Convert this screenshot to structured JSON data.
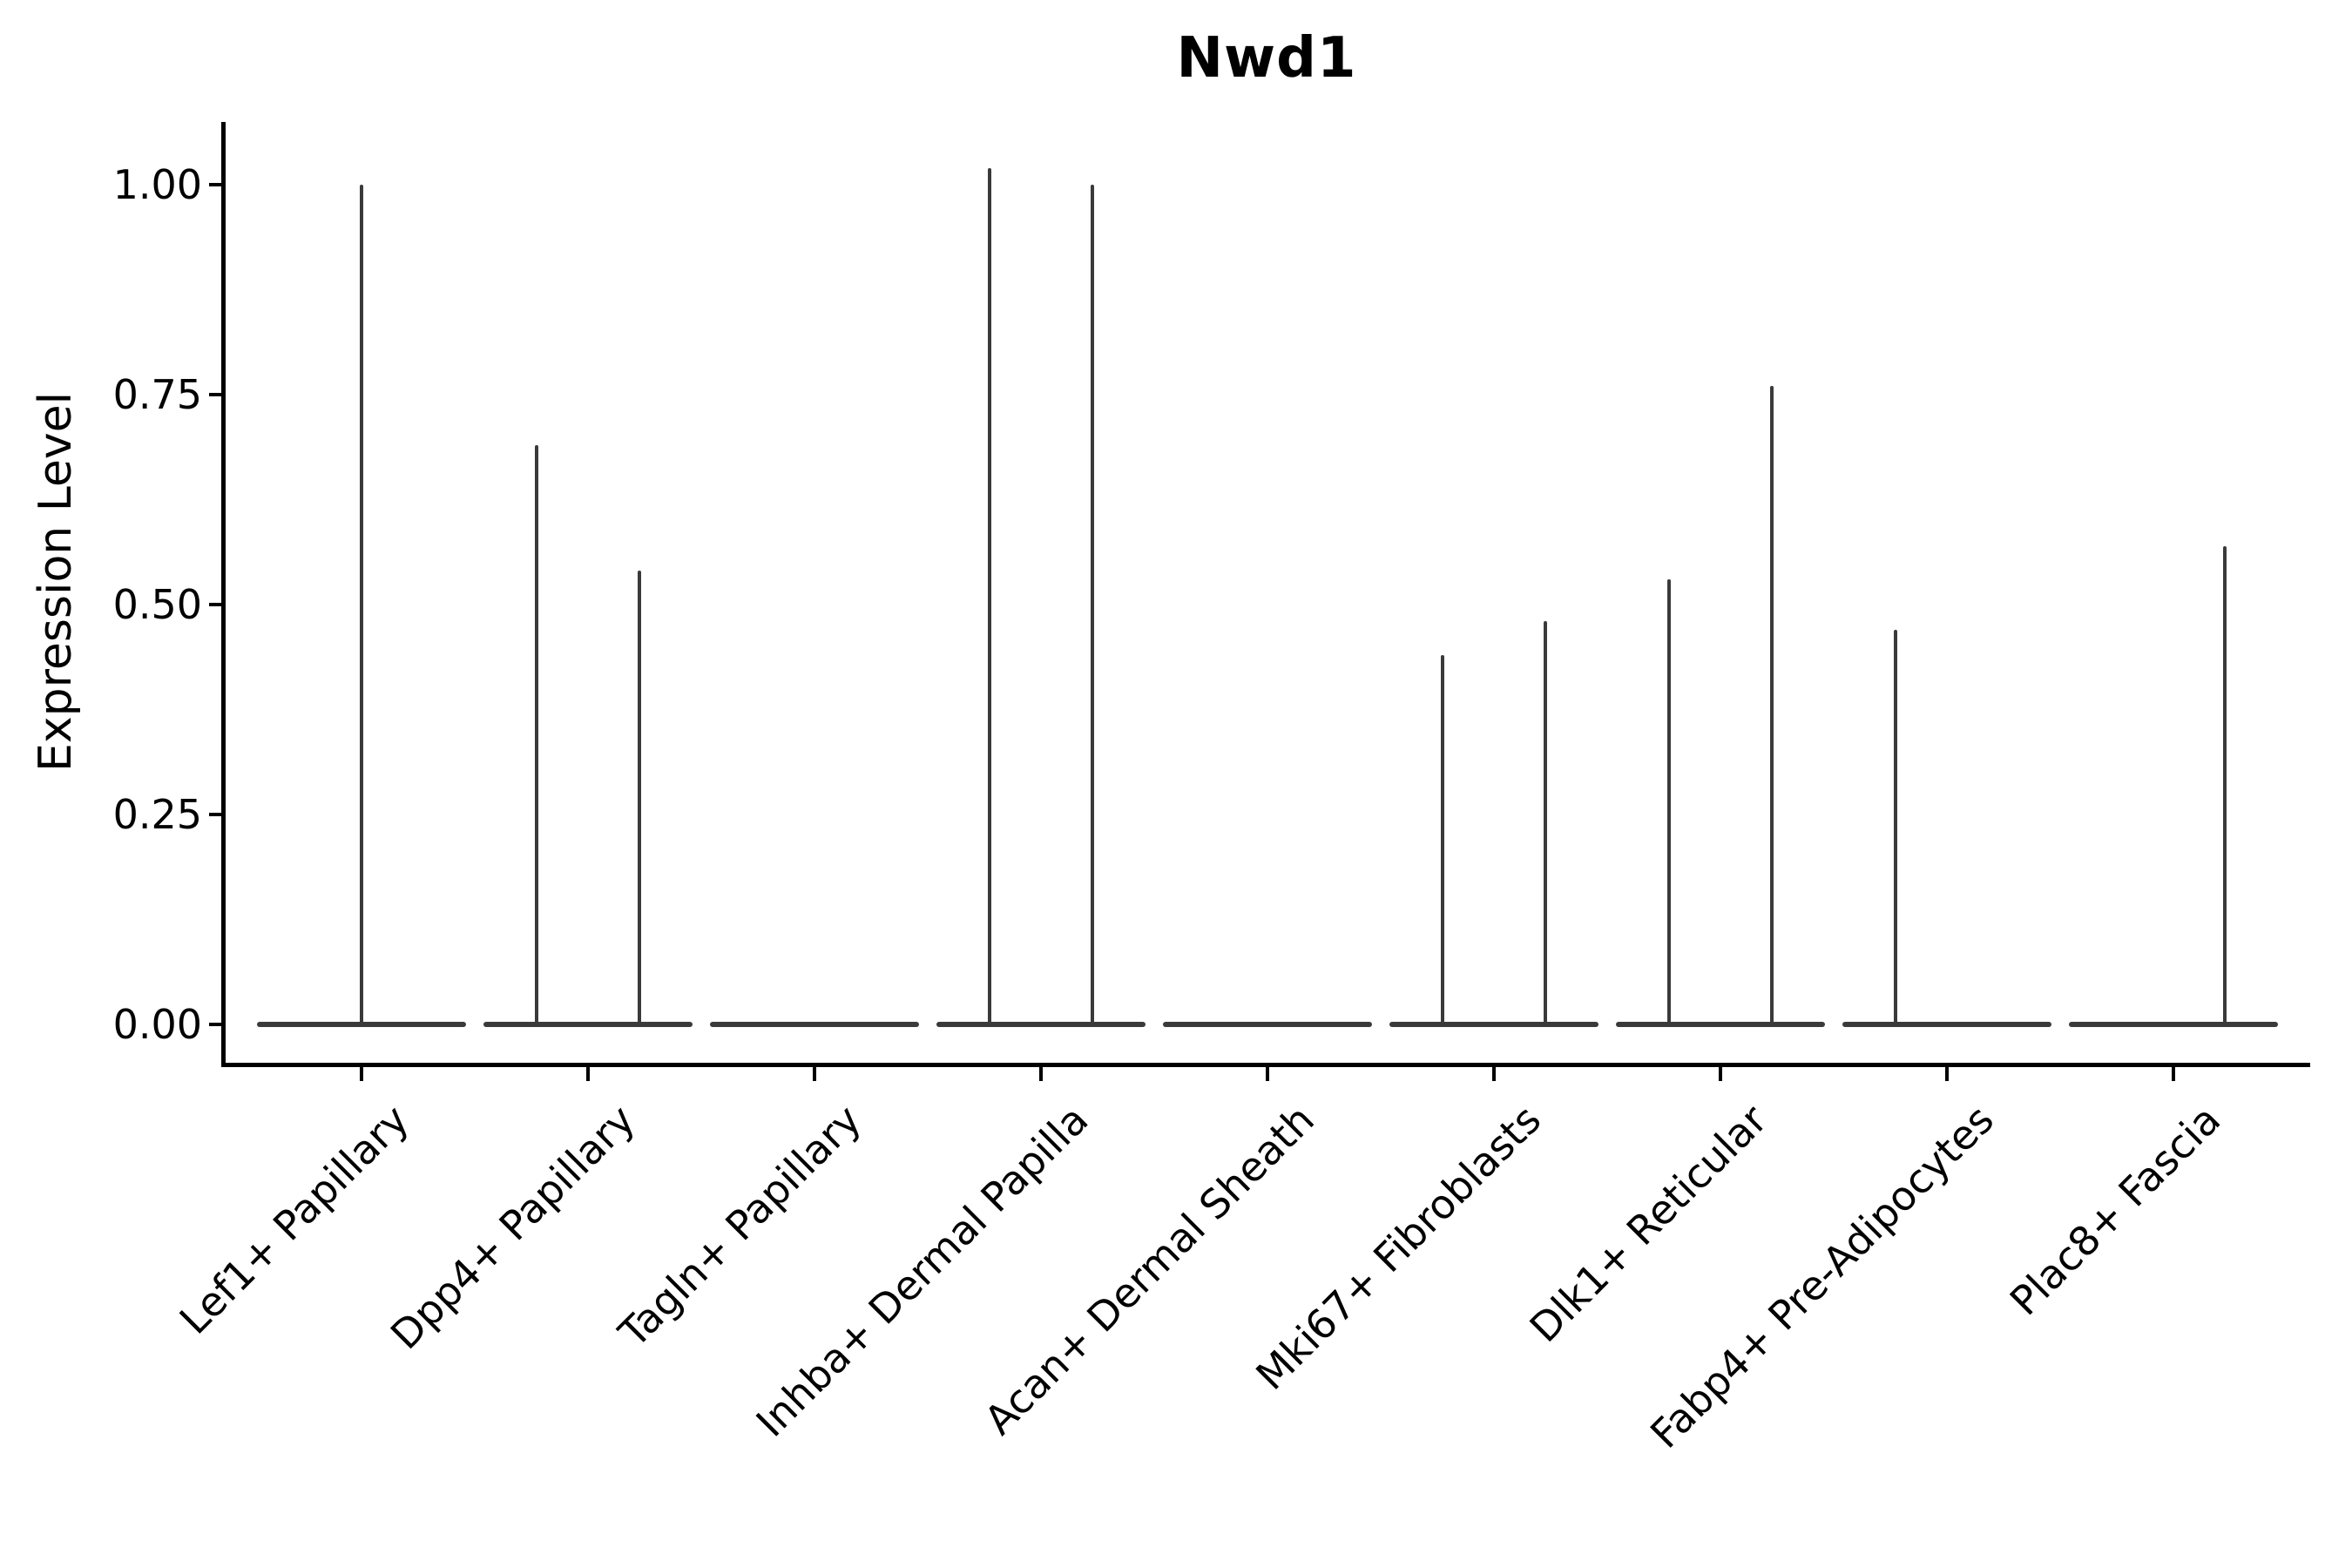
{
  "title": "Nwd1",
  "y_axis_label": "Expression Level",
  "y_tick_labels": [
    "1.00",
    "0.75",
    "0.50",
    "0.25",
    "0.00"
  ],
  "colors": {
    "violin": "#3a3a3a",
    "axis": "#000000",
    "text": "#000000",
    "background": "#ffffff"
  },
  "chart_data": {
    "type": "violin",
    "title": "Nwd1",
    "ylabel": "Expression Level",
    "xlabel": "",
    "ylim": [
      0,
      1.08
    ],
    "yticks": [
      1.0,
      0.75,
      0.5,
      0.25,
      0.0
    ],
    "grid": false,
    "legend_position": "none",
    "x_tick_rotation_deg": 45,
    "categories": [
      {
        "label": "Lef1+ Papillary",
        "violins": [
          {
            "position": "center",
            "max": 1.0
          }
        ]
      },
      {
        "label": "Dpp4+ Papillary",
        "violins": [
          {
            "position": "left",
            "max": 0.69
          },
          {
            "position": "right",
            "max": 0.54
          }
        ]
      },
      {
        "label": "Tagln+ Papillary",
        "violins": []
      },
      {
        "label": "Inhba+ Dermal Papilla",
        "violins": [
          {
            "position": "left",
            "max": 1.02
          },
          {
            "position": "right",
            "max": 1.0
          }
        ]
      },
      {
        "label": "Acan+ Dermal Sheath",
        "violins": []
      },
      {
        "label": "Mki67+ Fibroblasts",
        "violins": [
          {
            "position": "left",
            "max": 0.44
          },
          {
            "position": "right",
            "max": 0.48
          }
        ]
      },
      {
        "label": "Dlk1+ Reticular",
        "violins": [
          {
            "position": "left",
            "max": 0.53
          },
          {
            "position": "right",
            "max": 0.76
          }
        ]
      },
      {
        "label": "Fabp4+ Pre-Adipocytes",
        "violins": [
          {
            "position": "left",
            "max": 0.47
          }
        ]
      },
      {
        "label": "Plac8+ Fascia",
        "violins": [
          {
            "position": "right",
            "max": 0.57
          }
        ]
      }
    ]
  }
}
